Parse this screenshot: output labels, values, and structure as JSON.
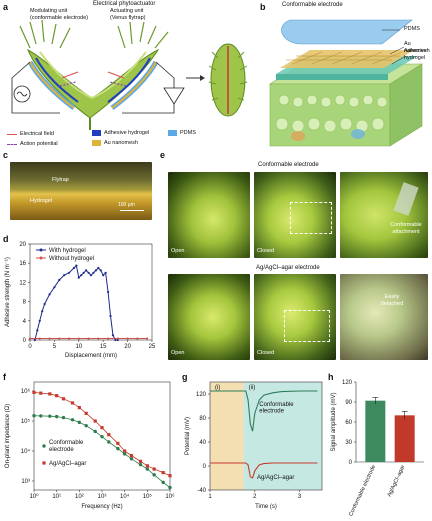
{
  "panels": {
    "a": {
      "letter": "a",
      "title": "Electrical phytoactuator",
      "modulating": "Modulating unit\n(conformable electrode)",
      "actuating": "Actuating unit\n(Venus flytrap)",
      "legend": {
        "field": "Electrical field",
        "ap": "Action potential",
        "adhesive": "Adhesive hydrogel",
        "au": "Au nanomesh",
        "pdms": "PDMS"
      },
      "colors": {
        "adhesive": "#1f3fbf",
        "au": "#e0b23a",
        "pdms": "#5aa9e6",
        "field": "#d9534f",
        "ap": "#8e44ad"
      }
    },
    "b": {
      "letter": "b",
      "title": "Conformable electrode",
      "layers": [
        "PDMS",
        "Au nanomesh",
        "Adhesive hydrogel"
      ]
    },
    "c": {
      "letter": "c",
      "flytrap": "Flytrap",
      "hydrogel": "Hydrogel",
      "scale": "100 μm"
    },
    "d": {
      "letter": "d"
    },
    "e": {
      "letter": "e",
      "title_top": "Conformable electrode",
      "title_bottom": "Ag/AgCl–agar electrode",
      "open": "Open",
      "closed": "Closed",
      "open2": "Open",
      "closed2": "Closed",
      "callout_top": "Conformable\nattachment",
      "callout_bottom": "Easily\ndetached"
    },
    "f": {
      "letter": "f"
    },
    "g": {
      "letter": "g"
    },
    "h": {
      "letter": "h"
    }
  },
  "chart_data": [
    {
      "id": "d",
      "type": "line",
      "xlabel": "Displacement (mm)",
      "ylabel": "Adhesive strength (N m⁻¹)",
      "xlim": [
        0,
        25
      ],
      "ylim": [
        0,
        20
      ],
      "xticks": [
        0,
        5,
        10,
        15,
        20,
        25
      ],
      "yticks": [
        0,
        4,
        8,
        12,
        16,
        20
      ],
      "legend": "top-left",
      "series": [
        {
          "name": "With hydrogel",
          "color": "#1f2a8c",
          "x": [
            1.0,
            1.5,
            2.0,
            2.5,
            3.0,
            4.0,
            5.0,
            6.0,
            7.0,
            8.0,
            9.0,
            9.5,
            10.0,
            10.5,
            11.0,
            11.5,
            12.0,
            12.5,
            13.0,
            13.5,
            14.0,
            14.5,
            15.0,
            15.5,
            16.0,
            16.5,
            17.0,
            17.5,
            18.0
          ],
          "y": [
            0.0,
            2.0,
            4.0,
            6.0,
            7.5,
            9.5,
            11.0,
            12.5,
            13.5,
            14.0,
            15.0,
            15.5,
            13.0,
            13.5,
            14.0,
            14.5,
            14.0,
            13.5,
            14.0,
            14.5,
            15.0,
            14.5,
            13.5,
            14.0,
            10.0,
            5.0,
            1.0,
            0.0,
            0.0
          ]
        },
        {
          "name": "Without hydrogel",
          "color": "#d0504c",
          "x": [
            0,
            2,
            4,
            6,
            8,
            10,
            12,
            14,
            16,
            18,
            20,
            22,
            24
          ],
          "y": [
            0.3,
            0.3,
            0.3,
            0.3,
            0.3,
            0.3,
            0.3,
            0.3,
            0.3,
            0.3,
            0.3,
            0.3,
            0.3
          ]
        }
      ]
    },
    {
      "id": "f",
      "type": "scatter",
      "xlabel": "Frequency (Hz)",
      "ylabel": "On-plant impedance (Ω)",
      "xscale": "log",
      "yscale": "log",
      "xlim": [
        1,
        1000000
      ],
      "ylim": [
        500,
        2000000
      ],
      "xtick_labels": [
        "10⁰",
        "10¹",
        "10²",
        "10³",
        "10⁴",
        "10⁵",
        "10⁶"
      ],
      "ytick_labels": [
        "10³",
        "10⁴",
        "10⁵",
        "10⁶"
      ],
      "series": [
        {
          "name": "Conformable electrode",
          "color": "#2e7d4f",
          "marker": "circle",
          "x": [
            1,
            2,
            5,
            10,
            20,
            50,
            100,
            200,
            500,
            1000,
            2000,
            5000,
            10000,
            20000,
            50000,
            100000,
            200000,
            500000,
            1000000
          ],
          "y": [
            150000,
            148000,
            145000,
            140000,
            130000,
            110000,
            90000,
            70000,
            45000,
            30000,
            20000,
            12000,
            8000,
            5500,
            3500,
            2500,
            1600,
            900,
            600
          ]
        },
        {
          "name": "Ag/AgCl–agar",
          "color": "#c63a2c",
          "marker": "square",
          "x": [
            1,
            2,
            5,
            10,
            20,
            50,
            100,
            200,
            500,
            1000,
            2000,
            5000,
            10000,
            20000,
            50000,
            100000,
            200000,
            500000,
            1000000
          ],
          "y": [
            900000,
            850000,
            800000,
            700000,
            550000,
            400000,
            280000,
            180000,
            100000,
            60000,
            35000,
            18000,
            10000,
            7000,
            4500,
            3200,
            2500,
            1900,
            1500
          ]
        }
      ]
    },
    {
      "id": "g",
      "type": "line",
      "xlabel": "Time (s)",
      "ylabel": "Potential (mV)",
      "xlim": [
        1,
        3.5
      ],
      "ylim": [
        -40,
        140
      ],
      "xticks": [
        1,
        2,
        3
      ],
      "yticks": [
        -40,
        0,
        40,
        80,
        120
      ],
      "regions": [
        {
          "label": "(i)",
          "x0": 1.0,
          "x1": 1.75,
          "color": "#f3dfb2"
        },
        {
          "label": "(ii)",
          "x0": 1.75,
          "x1": 3.5,
          "color": "#c5e8e2"
        }
      ],
      "series": [
        {
          "name": "Conformable electrode",
          "color": "#2e7d5a",
          "x": [
            1.0,
            1.5,
            1.8,
            1.85,
            1.9,
            1.95,
            2.0,
            2.1,
            2.2,
            2.4,
            2.6,
            3.0,
            3.4
          ],
          "y": [
            125,
            125,
            125,
            110,
            70,
            58,
            88,
            110,
            118,
            122,
            124,
            125,
            125
          ]
        },
        {
          "name": "Ag/AgCl–agar",
          "color": "#c63a2c",
          "x": [
            1.0,
            1.5,
            1.8,
            1.85,
            1.9,
            1.95,
            2.0,
            2.1,
            2.2,
            2.4,
            2.6,
            3.0,
            3.4
          ],
          "y": [
            5,
            5,
            5,
            2,
            -18,
            -20,
            -8,
            2,
            4,
            5,
            5,
            5,
            5
          ]
        }
      ]
    },
    {
      "id": "h",
      "type": "bar",
      "ylabel": "Signal amplitude (mV)",
      "ylim": [
        0,
        120
      ],
      "yticks": [
        0,
        30,
        60,
        90,
        120
      ],
      "categories": [
        "Conformable electrode",
        "Ag/AgCl–agar"
      ],
      "values": [
        92,
        70
      ],
      "errors": [
        5,
        6
      ],
      "colors": [
        "#3d8a5f",
        "#c0392b"
      ]
    }
  ]
}
